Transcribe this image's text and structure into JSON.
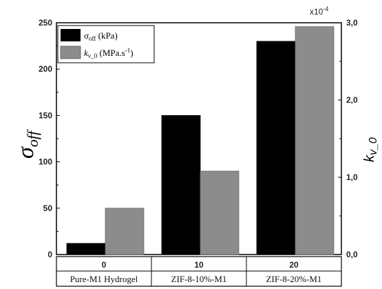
{
  "chart_data": {
    "type": "bar",
    "categories": [
      "0",
      "10",
      "20"
    ],
    "category_labels": [
      "Pure-M1 Hydrogel",
      "ZIF-8-10%-M1",
      "ZIF-8-20%-M1"
    ],
    "series": [
      {
        "name": "σoff (kPa)",
        "axis": "left",
        "color": "#000000",
        "values": [
          12,
          150,
          230
        ]
      },
      {
        "name": "kv_0 (MPa.s-1)",
        "axis": "right",
        "color": "#8c8c8c",
        "values": [
          0.6,
          1.08,
          2.95
        ]
      }
    ],
    "ylabel_left": "σoff",
    "ylabel_right": "kv_0",
    "ylim_left": [
      0,
      250
    ],
    "ylim_right": [
      0,
      3.0
    ],
    "yticks_left": [
      "0",
      "50",
      "100",
      "150",
      "200",
      "250"
    ],
    "yticks_right": [
      "0,0",
      "1,0",
      "2,0",
      "3,0"
    ],
    "right_axis_multiplier": "x10-4",
    "legend_position": "top-left",
    "grid": false
  }
}
